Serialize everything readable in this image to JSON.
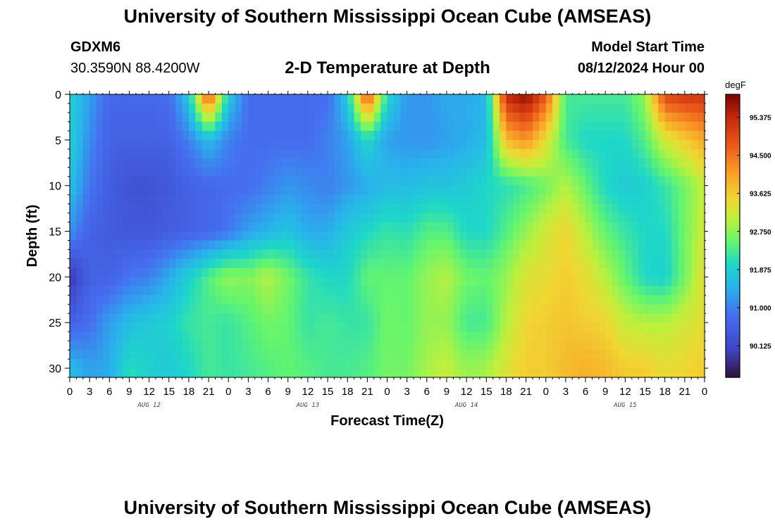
{
  "page": {
    "title_top": "University of Southern Mississippi Ocean Cube (AMSEAS)",
    "title_bottom": "University of Southern Mississippi Ocean Cube (AMSEAS)",
    "station": "GDXM6",
    "coordinates": "30.3590N  88.4200W",
    "subtitle": "2-D Temperature at Depth",
    "model_start_label": "Model Start Time",
    "model_start_value": "08/12/2024 Hour 00"
  },
  "chart_data": {
    "type": "heatmap",
    "title": "2-D Temperature at Depth",
    "xlabel": "Forecast Time(Z)",
    "ylabel": "Depth (ft)",
    "xlim": [
      0,
      96
    ],
    "ylim": [
      31,
      0
    ],
    "x_tick_labels": [
      "0",
      "3",
      "6",
      "9",
      "12",
      "15",
      "18",
      "21",
      "0",
      "3",
      "6",
      "9",
      "12",
      "15",
      "18",
      "21",
      "0",
      "3",
      "6",
      "9",
      "12",
      "15",
      "18",
      "21",
      "0",
      "3",
      "6",
      "9",
      "12",
      "15",
      "18",
      "21",
      "0"
    ],
    "day_labels": [
      {
        "label": "AUG 12",
        "hour": 12
      },
      {
        "label": "AUG 13",
        "hour": 36
      },
      {
        "label": "AUG 14",
        "hour": 60
      },
      {
        "label": "AUG 15",
        "hour": 84
      }
    ],
    "y_ticks": [
      0,
      5,
      10,
      15,
      20,
      25,
      30
    ],
    "colorbar": {
      "unit": "degF",
      "min": 89.4,
      "max": 95.9,
      "ticks": [
        "95.375",
        "94.500",
        "93.625",
        "92.750",
        "91.875",
        "91.000",
        "90.125"
      ],
      "tick_values": [
        95.375,
        94.5,
        93.625,
        92.75,
        91.875,
        91.0,
        90.125
      ]
    },
    "depths": [
      0,
      5,
      10,
      15,
      20,
      25,
      30
    ],
    "times": [
      0,
      3,
      6,
      9,
      12,
      15,
      18,
      21,
      24,
      27,
      30,
      33,
      36,
      39,
      42,
      45,
      48,
      51,
      54,
      57,
      60,
      63,
      66,
      69,
      72,
      75,
      78,
      81,
      84,
      87,
      90,
      93,
      96
    ],
    "values": [
      [
        91.9,
        91.3,
        90.7,
        90.7,
        90.7,
        90.8,
        91.8,
        95.0,
        91.8,
        90.8,
        90.8,
        90.8,
        90.8,
        90.8,
        91.8,
        95.0,
        92.0,
        91.2,
        91.2,
        91.4,
        91.4,
        91.5,
        95.4,
        95.8,
        94.8,
        92.3,
        92.3,
        92.3,
        92.3,
        92.8,
        95.0,
        95.2,
        95.2
      ],
      [
        91.9,
        91.1,
        90.6,
        90.6,
        90.6,
        90.6,
        91.0,
        91.6,
        91.0,
        90.8,
        90.8,
        90.8,
        90.8,
        91.0,
        91.3,
        92.0,
        91.3,
        91.2,
        91.2,
        91.3,
        91.4,
        91.6,
        93.8,
        94.2,
        93.4,
        92.3,
        92.0,
        92.0,
        92.0,
        92.4,
        93.2,
        93.6,
        94.0
      ],
      [
        91.7,
        90.9,
        90.5,
        90.3,
        90.3,
        90.4,
        90.6,
        90.7,
        90.8,
        90.8,
        91.0,
        91.2,
        91.1,
        91.0,
        91.2,
        91.4,
        91.6,
        91.6,
        91.7,
        91.7,
        91.8,
        92.0,
        92.1,
        92.3,
        92.6,
        93.0,
        92.5,
        92.0,
        91.8,
        91.9,
        92.2,
        92.6,
        93.1
      ],
      [
        91.2,
        90.6,
        90.5,
        90.4,
        90.4,
        90.5,
        90.6,
        90.7,
        90.9,
        91.3,
        91.5,
        91.7,
        91.4,
        91.4,
        91.8,
        92.0,
        92.2,
        92.1,
        92.4,
        92.4,
        92.0,
        92.0,
        92.4,
        92.8,
        93.2,
        93.5,
        93.0,
        92.5,
        92.2,
        92.0,
        92.0,
        92.6,
        93.2
      ],
      [
        89.8,
        90.6,
        90.6,
        90.9,
        91.0,
        91.4,
        91.9,
        92.4,
        92.8,
        92.7,
        93.0,
        92.6,
        92.2,
        92.0,
        92.0,
        92.5,
        92.5,
        92.5,
        92.8,
        93.0,
        92.6,
        92.5,
        92.8,
        93.3,
        93.4,
        93.6,
        93.4,
        93.0,
        92.5,
        92.0,
        91.9,
        92.6,
        93.4
      ],
      [
        90.6,
        90.8,
        91.3,
        91.6,
        91.8,
        91.9,
        92.2,
        92.3,
        92.2,
        92.4,
        92.6,
        92.5,
        92.2,
        92.3,
        92.2,
        92.2,
        92.6,
        92.5,
        92.8,
        92.8,
        92.3,
        92.3,
        93.0,
        93.5,
        93.6,
        93.7,
        93.6,
        93.5,
        93.1,
        93.0,
        93.0,
        93.2,
        93.4
      ],
      [
        91.6,
        91.3,
        91.4,
        92.1,
        91.9,
        91.8,
        92.0,
        92.3,
        92.2,
        92.3,
        92.4,
        92.5,
        92.4,
        92.3,
        92.3,
        92.4,
        92.6,
        92.6,
        92.9,
        93.1,
        92.8,
        92.9,
        93.3,
        93.6,
        93.6,
        93.8,
        93.9,
        93.8,
        93.6,
        93.6,
        93.4,
        93.5,
        93.6
      ]
    ]
  }
}
